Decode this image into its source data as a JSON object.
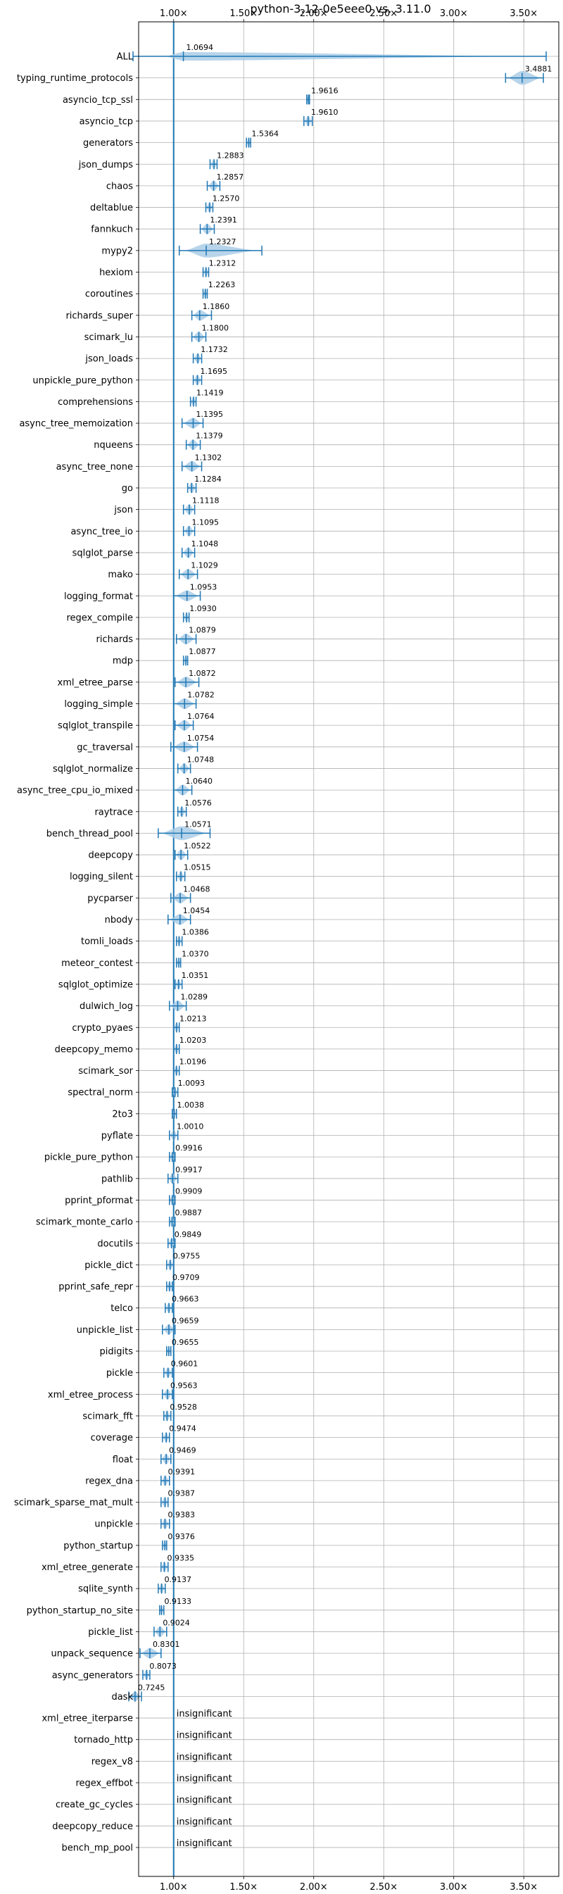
{
  "chart_data": {
    "type": "violin",
    "title": "python-3.12-0e5eee0 vs. 3.11.0",
    "xlabel": "",
    "ylabel": "",
    "xlim": [
      0.75,
      3.75
    ],
    "x_ticks": [
      1.0,
      1.5,
      2.0,
      2.5,
      3.0,
      3.5
    ],
    "x_tick_labels": [
      "1.00×",
      "1.50×",
      "2.00×",
      "2.50×",
      "3.00×",
      "3.50×"
    ],
    "x_ticks_position": "top-and-bottom",
    "grid": true,
    "reference_line": 1.0,
    "insignificant_label": "insignificant",
    "colors": {
      "violin": "#aacde6",
      "line": "#1f77b4",
      "grid": "#b0b0b0"
    },
    "series": [
      {
        "name": "ALL",
        "value": 1.0694,
        "label": "1.0694",
        "min": 0.71,
        "max": 3.66,
        "width": 0.55
      },
      {
        "name": "typing_runtime_protocols",
        "value": 3.4881,
        "label": "3.4881",
        "min": 3.37,
        "max": 3.64,
        "width": 0.9
      },
      {
        "name": "asyncio_tcp_ssl",
        "value": 1.9616,
        "label": "1.9616",
        "min": 1.95,
        "max": 1.97,
        "width": 0.5
      },
      {
        "name": "asyncio_tcp",
        "value": 1.961,
        "label": "1.9610",
        "min": 1.93,
        "max": 1.99,
        "width": 0.7
      },
      {
        "name": "generators",
        "value": 1.5364,
        "label": "1.5364",
        "min": 1.52,
        "max": 1.55,
        "width": 0.7
      },
      {
        "name": "json_dumps",
        "value": 1.2883,
        "label": "1.2883",
        "min": 1.26,
        "max": 1.31,
        "width": 0.7
      },
      {
        "name": "chaos",
        "value": 1.2857,
        "label": "1.2857",
        "min": 1.24,
        "max": 1.33,
        "width": 0.7
      },
      {
        "name": "deltablue",
        "value": 1.257,
        "label": "1.2570",
        "min": 1.23,
        "max": 1.28,
        "width": 0.7
      },
      {
        "name": "fannkuch",
        "value": 1.2391,
        "label": "1.2391",
        "min": 1.19,
        "max": 1.29,
        "width": 0.7
      },
      {
        "name": "mypy2",
        "value": 1.2327,
        "label": "1.2327",
        "min": 1.04,
        "max": 1.63,
        "width": 0.9
      },
      {
        "name": "hexiom",
        "value": 1.2312,
        "label": "1.2312",
        "min": 1.21,
        "max": 1.25,
        "width": 0.7
      },
      {
        "name": "coroutines",
        "value": 1.2263,
        "label": "1.2263",
        "min": 1.21,
        "max": 1.24,
        "width": 0.7
      },
      {
        "name": "richards_super",
        "value": 1.186,
        "label": "1.1860",
        "min": 1.13,
        "max": 1.27,
        "width": 0.7
      },
      {
        "name": "scimark_lu",
        "value": 1.18,
        "label": "1.1800",
        "min": 1.13,
        "max": 1.23,
        "width": 0.7
      },
      {
        "name": "json_loads",
        "value": 1.1732,
        "label": "1.1732",
        "min": 1.14,
        "max": 1.2,
        "width": 0.7
      },
      {
        "name": "unpickle_pure_python",
        "value": 1.1695,
        "label": "1.1695",
        "min": 1.14,
        "max": 1.2,
        "width": 0.7
      },
      {
        "name": "comprehensions",
        "value": 1.1419,
        "label": "1.1419",
        "min": 1.12,
        "max": 1.16,
        "width": 0.7
      },
      {
        "name": "async_tree_memoization",
        "value": 1.1395,
        "label": "1.1395",
        "min": 1.06,
        "max": 1.21,
        "width": 0.7
      },
      {
        "name": "nqueens",
        "value": 1.1379,
        "label": "1.1379",
        "min": 1.09,
        "max": 1.19,
        "width": 0.7
      },
      {
        "name": "async_tree_none",
        "value": 1.1302,
        "label": "1.1302",
        "min": 1.06,
        "max": 1.2,
        "width": 0.7
      },
      {
        "name": "go",
        "value": 1.1284,
        "label": "1.1284",
        "min": 1.1,
        "max": 1.16,
        "width": 0.7
      },
      {
        "name": "json",
        "value": 1.1118,
        "label": "1.1118",
        "min": 1.07,
        "max": 1.15,
        "width": 0.7
      },
      {
        "name": "async_tree_io",
        "value": 1.1095,
        "label": "1.1095",
        "min": 1.07,
        "max": 1.15,
        "width": 0.7
      },
      {
        "name": "sqlglot_parse",
        "value": 1.1048,
        "label": "1.1048",
        "min": 1.06,
        "max": 1.15,
        "width": 0.7
      },
      {
        "name": "mako",
        "value": 1.1029,
        "label": "1.1029",
        "min": 1.04,
        "max": 1.17,
        "width": 0.7
      },
      {
        "name": "logging_format",
        "value": 1.0953,
        "label": "1.0953",
        "min": 1.0,
        "max": 1.19,
        "width": 0.7
      },
      {
        "name": "regex_compile",
        "value": 1.093,
        "label": "1.0930",
        "min": 1.07,
        "max": 1.11,
        "width": 0.7
      },
      {
        "name": "richards",
        "value": 1.0879,
        "label": "1.0879",
        "min": 1.02,
        "max": 1.16,
        "width": 0.7
      },
      {
        "name": "mdp",
        "value": 1.0877,
        "label": "1.0877",
        "min": 1.07,
        "max": 1.1,
        "width": 0.7
      },
      {
        "name": "xml_etree_parse",
        "value": 1.0872,
        "label": "1.0872",
        "min": 1.01,
        "max": 1.18,
        "width": 0.7
      },
      {
        "name": "logging_simple",
        "value": 1.0782,
        "label": "1.0782",
        "min": 1.0,
        "max": 1.16,
        "width": 0.7
      },
      {
        "name": "sqlglot_transpile",
        "value": 1.0764,
        "label": "1.0764",
        "min": 1.01,
        "max": 1.14,
        "width": 0.7
      },
      {
        "name": "gc_traversal",
        "value": 1.0754,
        "label": "1.0754",
        "min": 0.98,
        "max": 1.17,
        "width": 0.7
      },
      {
        "name": "sqlglot_normalize",
        "value": 1.0748,
        "label": "1.0748",
        "min": 1.03,
        "max": 1.12,
        "width": 0.7
      },
      {
        "name": "async_tree_cpu_io_mixed",
        "value": 1.064,
        "label": "1.0640",
        "min": 1.0,
        "max": 1.13,
        "width": 0.7
      },
      {
        "name": "raytrace",
        "value": 1.0576,
        "label": "1.0576",
        "min": 1.03,
        "max": 1.09,
        "width": 0.7
      },
      {
        "name": "bench_thread_pool",
        "value": 1.0571,
        "label": "1.0571",
        "min": 0.89,
        "max": 1.26,
        "width": 0.9
      },
      {
        "name": "deepcopy",
        "value": 1.0522,
        "label": "1.0522",
        "min": 1.01,
        "max": 1.1,
        "width": 0.7
      },
      {
        "name": "logging_silent",
        "value": 1.0515,
        "label": "1.0515",
        "min": 1.02,
        "max": 1.08,
        "width": 0.7
      },
      {
        "name": "pycparser",
        "value": 1.0468,
        "label": "1.0468",
        "min": 0.98,
        "max": 1.12,
        "width": 0.7
      },
      {
        "name": "nbody",
        "value": 1.0454,
        "label": "1.0454",
        "min": 0.96,
        "max": 1.12,
        "width": 0.7
      },
      {
        "name": "tomli_loads",
        "value": 1.0386,
        "label": "1.0386",
        "min": 1.02,
        "max": 1.06,
        "width": 0.7
      },
      {
        "name": "meteor_contest",
        "value": 1.037,
        "label": "1.0370",
        "min": 1.02,
        "max": 1.05,
        "width": 0.7
      },
      {
        "name": "sqlglot_optimize",
        "value": 1.0351,
        "label": "1.0351",
        "min": 1.01,
        "max": 1.06,
        "width": 0.7
      },
      {
        "name": "dulwich_log",
        "value": 1.0289,
        "label": "1.0289",
        "min": 0.97,
        "max": 1.09,
        "width": 0.7
      },
      {
        "name": "crypto_pyaes",
        "value": 1.0213,
        "label": "1.0213",
        "min": 1.0,
        "max": 1.04,
        "width": 0.7
      },
      {
        "name": "deepcopy_memo",
        "value": 1.0203,
        "label": "1.0203",
        "min": 1.0,
        "max": 1.04,
        "width": 0.7
      },
      {
        "name": "scimark_sor",
        "value": 1.0196,
        "label": "1.0196",
        "min": 1.0,
        "max": 1.04,
        "width": 0.7
      },
      {
        "name": "spectral_norm",
        "value": 1.0093,
        "label": "1.0093",
        "min": 0.99,
        "max": 1.03,
        "width": 0.7
      },
      {
        "name": "2to3",
        "value": 1.0038,
        "label": "1.0038",
        "min": 0.99,
        "max": 1.02,
        "width": 0.7
      },
      {
        "name": "pyflate",
        "value": 1.001,
        "label": "1.0010",
        "min": 0.97,
        "max": 1.03,
        "width": 0.7
      },
      {
        "name": "pickle_pure_python",
        "value": 0.9916,
        "label": "0.9916",
        "min": 0.97,
        "max": 1.01,
        "width": 0.7
      },
      {
        "name": "pathlib",
        "value": 0.9917,
        "label": "0.9917",
        "min": 0.96,
        "max": 1.03,
        "width": 0.7
      },
      {
        "name": "pprint_pformat",
        "value": 0.9909,
        "label": "0.9909",
        "min": 0.97,
        "max": 1.01,
        "width": 0.7
      },
      {
        "name": "scimark_monte_carlo",
        "value": 0.9887,
        "label": "0.9887",
        "min": 0.97,
        "max": 1.01,
        "width": 0.7
      },
      {
        "name": "docutils",
        "value": 0.9849,
        "label": "0.9849",
        "min": 0.96,
        "max": 1.01,
        "width": 0.7
      },
      {
        "name": "pickle_dict",
        "value": 0.9755,
        "label": "0.9755",
        "min": 0.95,
        "max": 1.0,
        "width": 0.7
      },
      {
        "name": "pprint_safe_repr",
        "value": 0.9709,
        "label": "0.9709",
        "min": 0.95,
        "max": 0.99,
        "width": 0.7
      },
      {
        "name": "telco",
        "value": 0.9663,
        "label": "0.9663",
        "min": 0.94,
        "max": 0.99,
        "width": 0.7
      },
      {
        "name": "unpickle_list",
        "value": 0.9659,
        "label": "0.9659",
        "min": 0.92,
        "max": 1.01,
        "width": 0.7
      },
      {
        "name": "pidigits",
        "value": 0.9655,
        "label": "0.9655",
        "min": 0.95,
        "max": 0.98,
        "width": 0.7
      },
      {
        "name": "pickle",
        "value": 0.9601,
        "label": "0.9601",
        "min": 0.93,
        "max": 0.99,
        "width": 0.7
      },
      {
        "name": "xml_etree_process",
        "value": 0.9563,
        "label": "0.9563",
        "min": 0.92,
        "max": 0.99,
        "width": 0.7
      },
      {
        "name": "scimark_fft",
        "value": 0.9528,
        "label": "0.9528",
        "min": 0.93,
        "max": 0.98,
        "width": 0.7
      },
      {
        "name": "coverage",
        "value": 0.9474,
        "label": "0.9474",
        "min": 0.92,
        "max": 0.97,
        "width": 0.7
      },
      {
        "name": "float",
        "value": 0.9469,
        "label": "0.9469",
        "min": 0.91,
        "max": 0.98,
        "width": 0.7
      },
      {
        "name": "regex_dna",
        "value": 0.9391,
        "label": "0.9391",
        "min": 0.91,
        "max": 0.97,
        "width": 0.7
      },
      {
        "name": "scimark_sparse_mat_mult",
        "value": 0.9387,
        "label": "0.9387",
        "min": 0.91,
        "max": 0.96,
        "width": 0.7
      },
      {
        "name": "unpickle",
        "value": 0.9383,
        "label": "0.9383",
        "min": 0.91,
        "max": 0.97,
        "width": 0.7
      },
      {
        "name": "python_startup",
        "value": 0.9376,
        "label": "0.9376",
        "min": 0.92,
        "max": 0.95,
        "width": 0.7
      },
      {
        "name": "xml_etree_generate",
        "value": 0.9335,
        "label": "0.9335",
        "min": 0.91,
        "max": 0.96,
        "width": 0.7
      },
      {
        "name": "sqlite_synth",
        "value": 0.9137,
        "label": "0.9137",
        "min": 0.89,
        "max": 0.94,
        "width": 0.7
      },
      {
        "name": "python_startup_no_site",
        "value": 0.9133,
        "label": "0.9133",
        "min": 0.9,
        "max": 0.93,
        "width": 0.7
      },
      {
        "name": "pickle_list",
        "value": 0.9024,
        "label": "0.9024",
        "min": 0.86,
        "max": 0.95,
        "width": 0.7
      },
      {
        "name": "unpack_sequence",
        "value": 0.8301,
        "label": "0.8301",
        "min": 0.76,
        "max": 0.91,
        "width": 0.7
      },
      {
        "name": "async_generators",
        "value": 0.8073,
        "label": "0.8073",
        "min": 0.78,
        "max": 0.83,
        "width": 0.7
      },
      {
        "name": "dask",
        "value": 0.7245,
        "label": "0.7245",
        "min": 0.68,
        "max": 0.77,
        "width": 0.7
      },
      {
        "name": "xml_etree_iterparse",
        "insignificant": true
      },
      {
        "name": "tornado_http",
        "insignificant": true
      },
      {
        "name": "regex_v8",
        "insignificant": true
      },
      {
        "name": "regex_effbot",
        "insignificant": true
      },
      {
        "name": "create_gc_cycles",
        "insignificant": true
      },
      {
        "name": "deepcopy_reduce",
        "insignificant": true
      },
      {
        "name": "bench_mp_pool",
        "insignificant": true
      }
    ]
  }
}
